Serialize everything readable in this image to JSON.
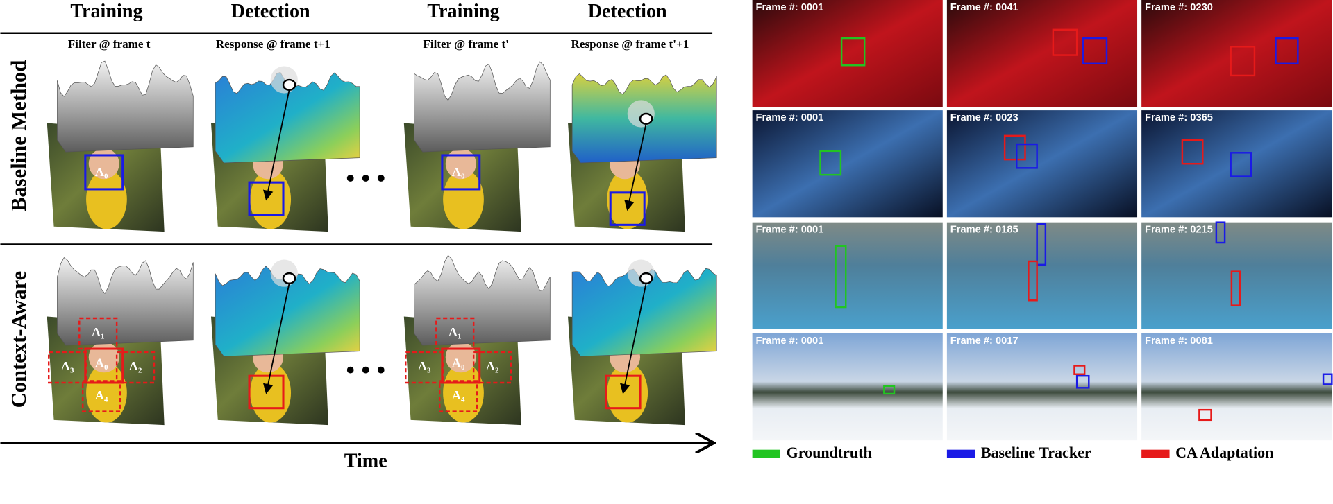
{
  "left": {
    "column_headers": [
      "Training",
      "Detection",
      "Training",
      "Detection"
    ],
    "sub_headers": [
      "Filter @ frame t",
      "Response @ frame t+1",
      "Filter @ frame t'",
      "Response @ frame t'+1"
    ],
    "row_labels": [
      "Baseline Method",
      "Context-Aware"
    ],
    "region_labels": {
      "baseline": [
        "A₀"
      ],
      "context_aware": [
        "A₀",
        "A₁",
        "A₂",
        "A₃",
        "A₄"
      ]
    },
    "axis_label": "Time"
  },
  "right": {
    "frames": [
      [
        "Frame #: 0001",
        "Frame #: 0041",
        "Frame #: 0230"
      ],
      [
        "Frame #: 0001",
        "Frame #: 0023",
        "Frame #: 0365"
      ],
      [
        "Frame #: 0001",
        "Frame #: 0185",
        "Frame #: 0215"
      ],
      [
        "Frame #: 0001",
        "Frame #: 0017",
        "Frame #: 0081"
      ]
    ],
    "legend": [
      {
        "label": "Groundtruth",
        "color": "#22c422"
      },
      {
        "label": "Baseline Tracker",
        "color": "#1a1ae6"
      },
      {
        "label": "CA Adaptation",
        "color": "#e61a1a"
      }
    ]
  }
}
